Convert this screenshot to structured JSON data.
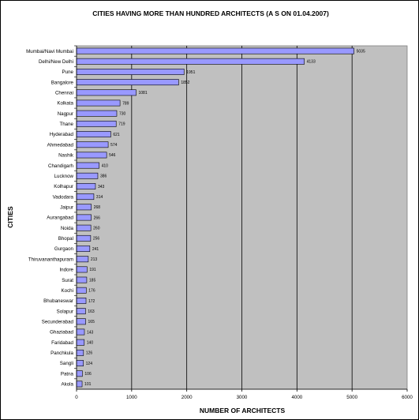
{
  "chart_data": {
    "type": "bar",
    "orientation": "horizontal",
    "title": "CITIES HAVING MORE THAN HUNDRED ARCHITECTS (A S ON 01.04.2007)",
    "xlabel": "NUMBER OF ARCHITECTS",
    "ylabel": "CITIES",
    "xlim": [
      0,
      6000
    ],
    "xticks": [
      "0",
      "1000",
      "2000",
      "3000",
      "4000",
      "5000",
      "6000"
    ],
    "grid": true,
    "legend": "none",
    "plot_background": "#c0c0c0",
    "bar_color": "#9999ff",
    "categories": [
      "Mumbai/Navi Mumbai",
      "Delhi/New Delhi",
      "Pune",
      "Bangalore",
      "Chennai",
      "Kolkata",
      "Nagpur",
      "Thane",
      "Hyderabad",
      "Ahmedabad",
      "Nashik",
      "Chandigarh",
      "Lucknow",
      "Kolhapur",
      "Vadodara",
      "Jaipur",
      "Aurangabad",
      "Noida",
      "Bhopal",
      "Gurgaon",
      "Thiruvananthapuram",
      "Indore",
      "Surat",
      "Kochi",
      "Bhubaneswar",
      "Solapur",
      "Secunderabad",
      "Ghaziabad",
      "Faridabad",
      "Panchkula",
      "Sangli",
      "Patna",
      "Akola"
    ],
    "values": [
      5035,
      4133,
      1951,
      1852,
      1081,
      789,
      730,
      719,
      621,
      574,
      546,
      410,
      386,
      343,
      314,
      268,
      266,
      260,
      256,
      241,
      213,
      191,
      185,
      176,
      172,
      163,
      165,
      143,
      140,
      126,
      124,
      106,
      101
    ]
  }
}
